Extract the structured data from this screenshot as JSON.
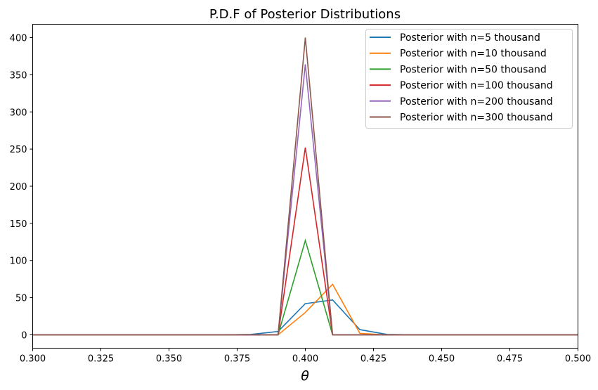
{
  "chart_data": {
    "type": "line",
    "title": "P.D.F of Posterior Distributions",
    "xlabel": "θ",
    "ylabel": "",
    "xlim": [
      0.3,
      0.5
    ],
    "ylim": [
      -18,
      418
    ],
    "grid": false,
    "legend_position": "top-right",
    "xticks": [
      "0.300",
      "0.325",
      "0.350",
      "0.375",
      "0.400",
      "0.425",
      "0.450",
      "0.475",
      "0.500"
    ],
    "yticks": [
      "0",
      "50",
      "100",
      "150",
      "200",
      "250",
      "300",
      "350",
      "400"
    ],
    "x": [
      0.3,
      0.31,
      0.32,
      0.33,
      0.34,
      0.35,
      0.36,
      0.37,
      0.38,
      0.39,
      0.4,
      0.41,
      0.42,
      0.43,
      0.44,
      0.45,
      0.46,
      0.47,
      0.48,
      0.49,
      0.5
    ],
    "series": [
      {
        "name": "Posterior with n=5 thousand",
        "color": "#1f77b4",
        "values": [
          0,
          0,
          0,
          0,
          0,
          0,
          0,
          0,
          0.5,
          4.5,
          42,
          47,
          7,
          0.5,
          0,
          0,
          0,
          0,
          0,
          0,
          0
        ]
      },
      {
        "name": "Posterior with n=10 thousand",
        "color": "#ff7f0e",
        "values": [
          0,
          0,
          0,
          0,
          0,
          0,
          0,
          0,
          0,
          0,
          30,
          68,
          2,
          0,
          0,
          0,
          0,
          0,
          0,
          0,
          0
        ]
      },
      {
        "name": "Posterior with n=50 thousand",
        "color": "#2ca02c",
        "values": [
          0,
          0,
          0,
          0,
          0,
          0,
          0,
          0,
          0,
          0,
          127,
          0,
          0,
          0,
          0,
          0,
          0,
          0,
          0,
          0,
          0
        ]
      },
      {
        "name": "Posterior with n=100 thousand",
        "color": "#d62728",
        "values": [
          0,
          0,
          0,
          0,
          0,
          0,
          0,
          0,
          0,
          0,
          252,
          0,
          0,
          0,
          0,
          0,
          0,
          0,
          0,
          0,
          0
        ]
      },
      {
        "name": "Posterior with n=200 thousand",
        "color": "#9467bd",
        "values": [
          0,
          0,
          0,
          0,
          0,
          0,
          0,
          0,
          0,
          0,
          364,
          0,
          0,
          0,
          0,
          0,
          0,
          0,
          0,
          0,
          0
        ]
      },
      {
        "name": "Posterior with n=300 thousand",
        "color": "#8c564b",
        "values": [
          0,
          0,
          0,
          0,
          0,
          0,
          0,
          0,
          0,
          0,
          400,
          0,
          0,
          0,
          0,
          0,
          0,
          0,
          0,
          0,
          0
        ]
      }
    ]
  }
}
